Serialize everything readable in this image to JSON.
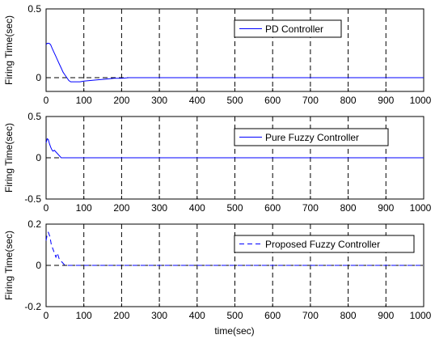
{
  "chart_data": [
    {
      "type": "line",
      "ylabel": "Firing Time(sec)",
      "xlabel": "",
      "xlim": [
        0,
        1000
      ],
      "ylim": [
        -0.1,
        0.5
      ],
      "xticks": [
        "0",
        "100",
        "200",
        "300",
        "400",
        "500",
        "600",
        "700",
        "800",
        "900",
        "1000"
      ],
      "yticks": [
        "0",
        "0.5"
      ],
      "grid": "vertical-dashed",
      "legend_position": "upper-right",
      "series": [
        {
          "name": "PD Controller",
          "style": "solid",
          "color": "#0000ff",
          "x": [
            0,
            3,
            8,
            12,
            15,
            20,
            25,
            30,
            35,
            40,
            45,
            50,
            55,
            60,
            65,
            70,
            80,
            90,
            100,
            120,
            140,
            160,
            180,
            200,
            220,
            240,
            260,
            280,
            300,
            400,
            500,
            600,
            700,
            800,
            900,
            1000
          ],
          "y": [
            0.24,
            0.25,
            0.25,
            0.24,
            0.22,
            0.19,
            0.16,
            0.13,
            0.1,
            0.07,
            0.04,
            0.02,
            0.0,
            -0.02,
            -0.03,
            -0.03,
            -0.03,
            -0.03,
            -0.025,
            -0.02,
            -0.015,
            -0.01,
            -0.005,
            -0.005,
            0.0,
            0.0,
            0.0,
            0.0,
            0.0,
            0.0,
            0.0,
            0.0,
            0.0,
            0.0,
            0.0,
            0.0
          ]
        }
      ]
    },
    {
      "type": "line",
      "ylabel": "Firing Time(sec)",
      "xlabel": "",
      "xlim": [
        0,
        1000
      ],
      "ylim": [
        -0.5,
        0.5
      ],
      "xticks": [
        "0",
        "100",
        "200",
        "300",
        "400",
        "500",
        "600",
        "700",
        "800",
        "900",
        "1000"
      ],
      "yticks": [
        "-0.5",
        "0",
        "0.5"
      ],
      "grid": "vertical-dashed",
      "legend_position": "upper-right",
      "series": [
        {
          "name": "Pure Fuzzy Controller",
          "style": "solid",
          "color": "#0000ff",
          "x": [
            0,
            3,
            6,
            9,
            12,
            15,
            18,
            22,
            40,
            1000
          ],
          "y": [
            0.18,
            0.23,
            0.22,
            0.17,
            0.13,
            0.1,
            0.08,
            0.09,
            0.0,
            0.0
          ]
        }
      ]
    },
    {
      "type": "line",
      "ylabel": "Firing Time(sec)",
      "xlabel": "time(sec)",
      "xlim": [
        0,
        1000
      ],
      "ylim": [
        -0.2,
        0.2
      ],
      "xticks": [
        "0",
        "100",
        "200",
        "300",
        "400",
        "500",
        "600",
        "700",
        "800",
        "900",
        "1000"
      ],
      "yticks": [
        "-0.2",
        "0",
        "0.2"
      ],
      "grid": "vertical-dashed",
      "legend_position": "upper-right",
      "series": [
        {
          "name": "Proposed Fuzzy Controller",
          "style": "dashed",
          "color": "#0000ff",
          "x": [
            0,
            3,
            6,
            10,
            14,
            18,
            22,
            26,
            30,
            35,
            40,
            45,
            50,
            55,
            70,
            1000
          ],
          "y": [
            0.12,
            0.15,
            0.16,
            0.14,
            0.1,
            0.08,
            0.06,
            0.04,
            0.06,
            0.03,
            0.02,
            0.01,
            0.0,
            0.0,
            0.0,
            0.0
          ]
        }
      ]
    }
  ]
}
